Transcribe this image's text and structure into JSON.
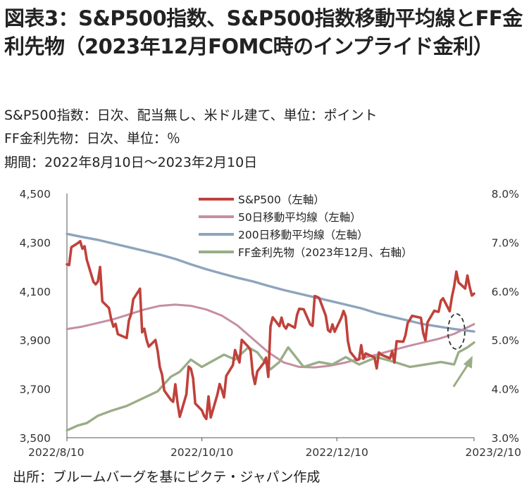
{
  "figure": {
    "title": "図表3：S&P500指数、S&P500指数移動平均線とFF金利先物（2023年12月FOMC時のインプライド金利）",
    "notes": [
      "S&P500指数：日次、配当無し、米ドル建て、単位：ポイント",
      "FF金利先物：日次、単位：％",
      "期間：2022年8月10日～2023年2月10日"
    ],
    "source": "出所：ブルームバーグを基にピクテ・ジャパン作成"
  },
  "chart_data": {
    "type": "line",
    "x_start": "2022-08-10",
    "x_end": "2023-02-10",
    "x_ticks": [
      "2022-08-10",
      "2022-10-10",
      "2022-12-10",
      "2023-02-10"
    ],
    "x_tick_labels": [
      "2022/8/10",
      "2022/10/10",
      "2022/12/10",
      "2023/2/10"
    ],
    "y_left": {
      "range": [
        3500,
        4500
      ],
      "ticks": [
        3500,
        3700,
        3900,
        4100,
        4300,
        4500
      ],
      "tick_labels": [
        "3,500",
        "3,700",
        "3,900",
        "4,100",
        "4,300",
        "4,500"
      ]
    },
    "y_right": {
      "range": [
        3.0,
        8.0
      ],
      "ticks": [
        3.0,
        4.0,
        5.0,
        6.0,
        7.0,
        8.0
      ],
      "tick_labels": [
        "3.0%",
        "4.0%",
        "5.0%",
        "6.0%",
        "7.0%",
        "8.0%"
      ]
    },
    "grid": false,
    "legend_position": "top",
    "annotations": [
      "dashed ellipse near 2023-02-02 around the crossing of the 50-day and 200-day averages",
      "arrow pointing up-right to the FF futures line near 2023-02-10"
    ],
    "series": [
      {
        "name": "S&P500（左軸）",
        "axis": "left",
        "color": "#c0413b",
        "points": [
          [
            "2022-08-10",
            4210
          ],
          [
            "2022-08-11",
            4207
          ],
          [
            "2022-08-12",
            4280
          ],
          [
            "2022-08-15",
            4297
          ],
          [
            "2022-08-16",
            4305
          ],
          [
            "2022-08-17",
            4274
          ],
          [
            "2022-08-18",
            4284
          ],
          [
            "2022-08-19",
            4228
          ],
          [
            "2022-08-22",
            4138
          ],
          [
            "2022-08-23",
            4128
          ],
          [
            "2022-08-24",
            4140
          ],
          [
            "2022-08-25",
            4199
          ],
          [
            "2022-08-26",
            4058
          ],
          [
            "2022-08-29",
            4031
          ],
          [
            "2022-08-30",
            3986
          ],
          [
            "2022-08-31",
            3955
          ],
          [
            "2022-09-01",
            3966
          ],
          [
            "2022-09-02",
            3924
          ],
          [
            "2022-09-06",
            3908
          ],
          [
            "2022-09-07",
            3980
          ],
          [
            "2022-09-08",
            4006
          ],
          [
            "2022-09-09",
            4067
          ],
          [
            "2022-09-12",
            4110
          ],
          [
            "2022-09-13",
            3932
          ],
          [
            "2022-09-14",
            3946
          ],
          [
            "2022-09-15",
            3901
          ],
          [
            "2022-09-16",
            3873
          ],
          [
            "2022-09-19",
            3900
          ],
          [
            "2022-09-20",
            3856
          ],
          [
            "2022-09-21",
            3789
          ],
          [
            "2022-09-22",
            3758
          ],
          [
            "2022-09-23",
            3693
          ],
          [
            "2022-09-26",
            3655
          ],
          [
            "2022-09-27",
            3647
          ],
          [
            "2022-09-28",
            3719
          ],
          [
            "2022-09-29",
            3641
          ],
          [
            "2022-09-30",
            3586
          ],
          [
            "2022-10-03",
            3678
          ],
          [
            "2022-10-04",
            3791
          ],
          [
            "2022-10-05",
            3783
          ],
          [
            "2022-10-06",
            3744
          ],
          [
            "2022-10-07",
            3640
          ],
          [
            "2022-10-10",
            3612
          ],
          [
            "2022-10-11",
            3589
          ],
          [
            "2022-10-12",
            3577
          ],
          [
            "2022-10-13",
            3669
          ],
          [
            "2022-10-14",
            3583
          ],
          [
            "2022-10-17",
            3677
          ],
          [
            "2022-10-18",
            3720
          ],
          [
            "2022-10-19",
            3696
          ],
          [
            "2022-10-20",
            3665
          ],
          [
            "2022-10-21",
            3753
          ],
          [
            "2022-10-24",
            3797
          ],
          [
            "2022-10-25",
            3859
          ],
          [
            "2022-10-26",
            3831
          ],
          [
            "2022-10-27",
            3808
          ],
          [
            "2022-10-28",
            3901
          ],
          [
            "2022-10-31",
            3872
          ],
          [
            "2022-11-01",
            3857
          ],
          [
            "2022-11-02",
            3760
          ],
          [
            "2022-11-03",
            3720
          ],
          [
            "2022-11-04",
            3771
          ],
          [
            "2022-11-07",
            3807
          ],
          [
            "2022-11-08",
            3828
          ],
          [
            "2022-11-09",
            3749
          ],
          [
            "2022-11-10",
            3956
          ],
          [
            "2022-11-11",
            3993
          ],
          [
            "2022-11-14",
            3957
          ],
          [
            "2022-11-15",
            3992
          ],
          [
            "2022-11-16",
            3959
          ],
          [
            "2022-11-17",
            3947
          ],
          [
            "2022-11-18",
            3965
          ],
          [
            "2022-11-21",
            3950
          ],
          [
            "2022-11-22",
            4003
          ],
          [
            "2022-11-23",
            4028
          ],
          [
            "2022-11-25",
            4026
          ],
          [
            "2022-11-28",
            3964
          ],
          [
            "2022-11-29",
            3958
          ],
          [
            "2022-11-30",
            4080
          ],
          [
            "2022-12-01",
            4077
          ],
          [
            "2022-12-02",
            4072
          ],
          [
            "2022-12-05",
            3999
          ],
          [
            "2022-12-06",
            3941
          ],
          [
            "2022-12-07",
            3933
          ],
          [
            "2022-12-08",
            3964
          ],
          [
            "2022-12-09",
            3934
          ],
          [
            "2022-12-12",
            3991
          ],
          [
            "2022-12-13",
            4019
          ],
          [
            "2022-12-14",
            3996
          ],
          [
            "2022-12-15",
            3896
          ],
          [
            "2022-12-16",
            3852
          ],
          [
            "2022-12-19",
            3818
          ],
          [
            "2022-12-20",
            3821
          ],
          [
            "2022-12-21",
            3879
          ],
          [
            "2022-12-22",
            3823
          ],
          [
            "2022-12-23",
            3845
          ],
          [
            "2022-12-27",
            3829
          ],
          [
            "2022-12-28",
            3784
          ],
          [
            "2022-12-29",
            3849
          ],
          [
            "2022-12-30",
            3840
          ],
          [
            "2023-01-03",
            3825
          ],
          [
            "2023-01-04",
            3853
          ],
          [
            "2023-01-05",
            3808
          ],
          [
            "2023-01-06",
            3895
          ],
          [
            "2023-01-09",
            3893
          ],
          [
            "2023-01-10",
            3919
          ],
          [
            "2023-01-11",
            3970
          ],
          [
            "2023-01-12",
            3983
          ],
          [
            "2023-01-13",
            3999
          ],
          [
            "2023-01-17",
            3991
          ],
          [
            "2023-01-18",
            3929
          ],
          [
            "2023-01-19",
            3899
          ],
          [
            "2023-01-20",
            3973
          ],
          [
            "2023-01-23",
            4020
          ],
          [
            "2023-01-24",
            4017
          ],
          [
            "2023-01-25",
            4016
          ],
          [
            "2023-01-26",
            4061
          ],
          [
            "2023-01-27",
            4071
          ],
          [
            "2023-01-30",
            4018
          ],
          [
            "2023-01-31",
            4077
          ],
          [
            "2023-02-01",
            4119
          ],
          [
            "2023-02-02",
            4180
          ],
          [
            "2023-02-03",
            4136
          ],
          [
            "2023-02-06",
            4111
          ],
          [
            "2023-02-07",
            4164
          ],
          [
            "2023-02-08",
            4118
          ],
          [
            "2023-02-09",
            4082
          ],
          [
            "2023-02-10",
            4090
          ]
        ]
      },
      {
        "name": "50日移動平均線（左軸）",
        "axis": "left",
        "color": "#c48fa3",
        "points": [
          [
            "2022-08-10",
            3945
          ],
          [
            "2022-08-17",
            3955
          ],
          [
            "2022-08-24",
            3970
          ],
          [
            "2022-08-31",
            3985
          ],
          [
            "2022-09-07",
            4005
          ],
          [
            "2022-09-14",
            4025
          ],
          [
            "2022-09-21",
            4040
          ],
          [
            "2022-09-28",
            4045
          ],
          [
            "2022-10-05",
            4040
          ],
          [
            "2022-10-12",
            4025
          ],
          [
            "2022-10-19",
            4000
          ],
          [
            "2022-10-26",
            3960
          ],
          [
            "2022-11-02",
            3905
          ],
          [
            "2022-11-09",
            3850
          ],
          [
            "2022-11-16",
            3808
          ],
          [
            "2022-11-23",
            3790
          ],
          [
            "2022-11-30",
            3788
          ],
          [
            "2022-12-07",
            3795
          ],
          [
            "2022-12-14",
            3808
          ],
          [
            "2022-12-21",
            3825
          ],
          [
            "2022-12-28",
            3840
          ],
          [
            "2023-01-04",
            3858
          ],
          [
            "2023-01-11",
            3875
          ],
          [
            "2023-01-18",
            3890
          ],
          [
            "2023-01-25",
            3905
          ],
          [
            "2023-02-01",
            3925
          ],
          [
            "2023-02-10",
            3965
          ]
        ]
      },
      {
        "name": "200日移動平均線（左軸）",
        "axis": "left",
        "color": "#8ea4bd",
        "points": [
          [
            "2022-08-10",
            4335
          ],
          [
            "2022-08-17",
            4322
          ],
          [
            "2022-08-24",
            4310
          ],
          [
            "2022-08-31",
            4295
          ],
          [
            "2022-09-07",
            4280
          ],
          [
            "2022-09-14",
            4265
          ],
          [
            "2022-09-21",
            4250
          ],
          [
            "2022-09-28",
            4232
          ],
          [
            "2022-10-05",
            4210
          ],
          [
            "2022-10-12",
            4190
          ],
          [
            "2022-10-19",
            4172
          ],
          [
            "2022-10-26",
            4155
          ],
          [
            "2022-11-02",
            4140
          ],
          [
            "2022-11-09",
            4122
          ],
          [
            "2022-11-16",
            4105
          ],
          [
            "2022-11-23",
            4090
          ],
          [
            "2022-11-30",
            4075
          ],
          [
            "2022-12-07",
            4060
          ],
          [
            "2022-12-14",
            4045
          ],
          [
            "2022-12-21",
            4030
          ],
          [
            "2022-12-28",
            4010
          ],
          [
            "2023-01-04",
            3995
          ],
          [
            "2023-01-11",
            3980
          ],
          [
            "2023-01-18",
            3965
          ],
          [
            "2023-01-25",
            3955
          ],
          [
            "2023-02-01",
            3945
          ],
          [
            "2023-02-10",
            3935
          ]
        ]
      },
      {
        "name": "FF金利先物（2023年12月、右軸）",
        "axis": "right",
        "color": "#9aad87",
        "points": [
          [
            "2022-08-10",
            3.15
          ],
          [
            "2022-08-15",
            3.25
          ],
          [
            "2022-08-19",
            3.3
          ],
          [
            "2022-08-24",
            3.45
          ],
          [
            "2022-08-30",
            3.55
          ],
          [
            "2022-09-06",
            3.65
          ],
          [
            "2022-09-13",
            3.8
          ],
          [
            "2022-09-20",
            3.95
          ],
          [
            "2022-09-26",
            4.25
          ],
          [
            "2022-09-30",
            4.35
          ],
          [
            "2022-10-05",
            4.6
          ],
          [
            "2022-10-10",
            4.45
          ],
          [
            "2022-10-14",
            4.55
          ],
          [
            "2022-10-20",
            4.7
          ],
          [
            "2022-10-25",
            4.6
          ],
          [
            "2022-10-31",
            4.85
          ],
          [
            "2022-11-04",
            4.75
          ],
          [
            "2022-11-10",
            4.4
          ],
          [
            "2022-11-14",
            4.55
          ],
          [
            "2022-11-18",
            4.85
          ],
          [
            "2022-11-25",
            4.45
          ],
          [
            "2022-12-02",
            4.55
          ],
          [
            "2022-12-08",
            4.5
          ],
          [
            "2022-12-14",
            4.65
          ],
          [
            "2022-12-20",
            4.5
          ],
          [
            "2022-12-28",
            4.65
          ],
          [
            "2023-01-05",
            4.55
          ],
          [
            "2023-01-12",
            4.45
          ],
          [
            "2023-01-19",
            4.5
          ],
          [
            "2023-01-26",
            4.55
          ],
          [
            "2023-02-01",
            4.5
          ],
          [
            "2023-02-03",
            4.75
          ],
          [
            "2023-02-07",
            4.85
          ],
          [
            "2023-02-10",
            4.95
          ]
        ]
      }
    ]
  }
}
